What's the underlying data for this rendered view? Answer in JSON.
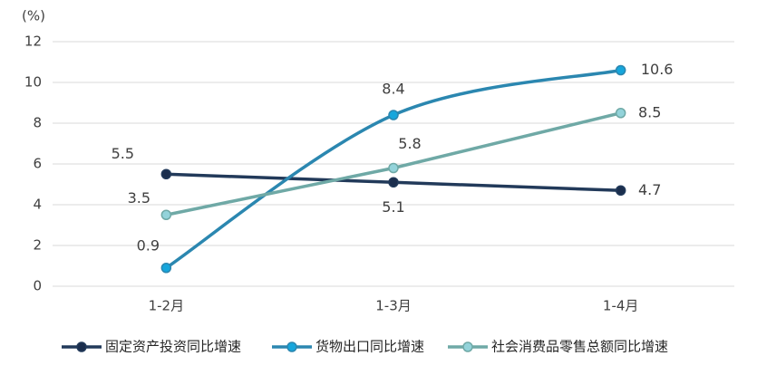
{
  "chart_data": {
    "type": "line",
    "y_label": "(%)",
    "categories": [
      "1-2月",
      "1-3月",
      "1-4月"
    ],
    "series": [
      {
        "name": "固定资产投资同比增速",
        "color": "#223a5a",
        "marker_color": "#1b2e4d",
        "smooth": false,
        "values": [
          5.5,
          5.1,
          4.7
        ]
      },
      {
        "name": "货物出口同比增速",
        "color": "#2b87b0",
        "marker_color": "#16a6dc",
        "smooth": true,
        "values": [
          0.9,
          8.4,
          10.6
        ]
      },
      {
        "name": "社会消费品零售总额同比增速",
        "color": "#6fa9a6",
        "marker_color": "#93d3da",
        "smooth": false,
        "values": [
          3.5,
          5.8,
          8.5
        ]
      }
    ],
    "ylim": [
      0,
      12
    ],
    "yticks": [
      0,
      2,
      4,
      6,
      8,
      10,
      12
    ],
    "grid": true
  }
}
